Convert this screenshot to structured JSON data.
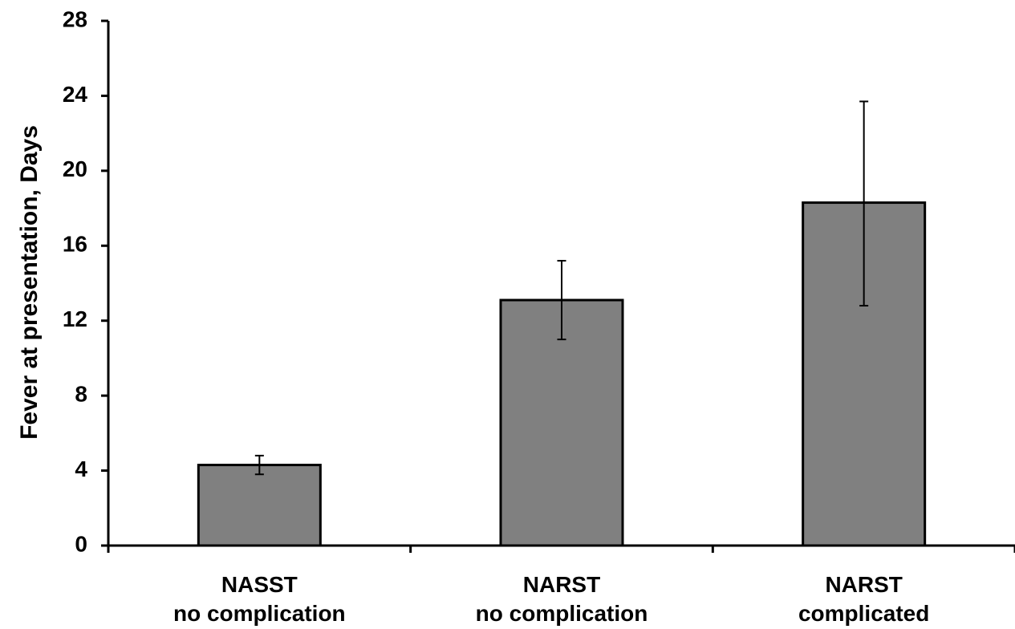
{
  "chart_data": {
    "type": "bar",
    "title": "",
    "xlabel": "",
    "ylabel": "Fever at presentation, Days",
    "ylim": [
      0,
      28
    ],
    "yticks": [
      0,
      4,
      8,
      12,
      16,
      20,
      24,
      28
    ],
    "grid": false,
    "legend": "none",
    "bar_color": "#808080",
    "bar_edge_color": "#000000",
    "categories": [
      [
        "NASST",
        "no complication"
      ],
      [
        "NARST",
        "no complication"
      ],
      [
        "NARST",
        "complicated"
      ]
    ],
    "values": [
      4.3,
      13.1,
      18.3
    ],
    "error_low": [
      3.8,
      11.0,
      12.8
    ],
    "error_high": [
      4.8,
      15.2,
      23.7
    ]
  }
}
